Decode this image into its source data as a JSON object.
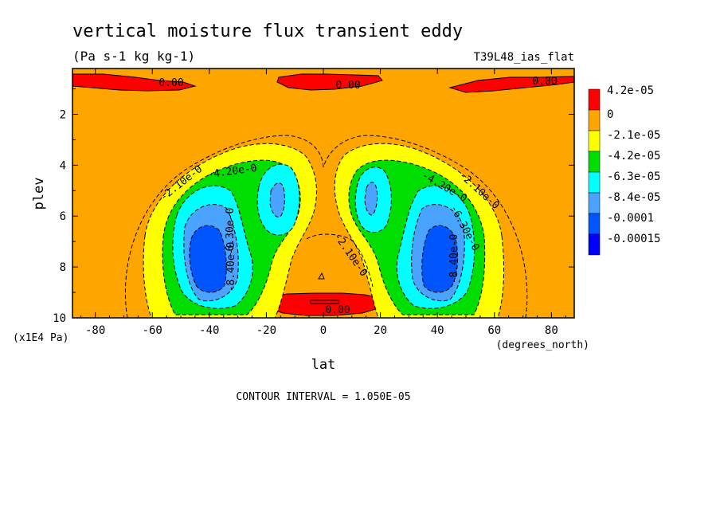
{
  "chart_data": {
    "type": "contour",
    "title": "vertical moisture flux transient eddy",
    "units": "(Pa s-1 kg kg-1)",
    "run_label": "T39L48_ias_flat",
    "xlabel": "lat",
    "x_units": "(degrees_north)",
    "ylabel": "plev",
    "y_units": "(x1E4 Pa)",
    "xlim": [
      -88,
      88
    ],
    "ylim": [
      10,
      0.2
    ],
    "x_ticks": [
      -80,
      -60,
      -40,
      -20,
      0,
      20,
      40,
      60,
      80
    ],
    "y_ticks": [
      2,
      4,
      6,
      8,
      10
    ],
    "contour_interval_text": "CONTOUR INTERVAL = 1.050E-05",
    "legend": [
      {
        "label": "4.2e-05",
        "color": "#ff0000"
      },
      {
        "label": "0",
        "color": "#ffa500"
      },
      {
        "label": "-2.1e-05",
        "color": "#ffff00"
      },
      {
        "label": "-4.2e-05",
        "color": "#00dd00"
      },
      {
        "label": "-6.3e-05",
        "color": "#00ffff"
      },
      {
        "label": "-8.4e-05",
        "color": "#4aa3ff"
      },
      {
        "label": "-0.0001",
        "color": "#0055ff"
      },
      {
        "label": "-0.00015",
        "color": "#0000ff"
      }
    ],
    "background_color": "#ffa500",
    "regions": [
      {
        "name": "positive-flux-top-south",
        "level": "0",
        "color": "#ff0000",
        "lat": [
          -88,
          -35
        ],
        "plev": [
          0.25,
          1.2
        ]
      },
      {
        "name": "positive-flux-top-center",
        "level": "0",
        "color": "#ff0000",
        "lat": [
          -15,
          15
        ],
        "plev": [
          0.2,
          1.1
        ]
      },
      {
        "name": "positive-flux-top-north",
        "level": "0",
        "color": "#ff0000",
        "lat": [
          45,
          88
        ],
        "plev": [
          0.25,
          1.2
        ]
      },
      {
        "name": "positive-flux-bottom",
        "level": "0",
        "color": "#ff0000",
        "lat": [
          -20,
          15
        ],
        "plev": [
          9.0,
          9.85
        ]
      },
      {
        "name": "negative-lobe-south",
        "min_level": "-0.00015",
        "lat": [
          -65,
          -15
        ],
        "plev": [
          3.3,
          10
        ]
      },
      {
        "name": "negative-lobe-north",
        "min_level": "-0.00015",
        "lat": [
          15,
          65
        ],
        "plev": [
          3.3,
          10
        ]
      }
    ],
    "contour_labels": [
      "0.00",
      "0.00",
      "0.00",
      "0.00",
      "-2.10e-0",
      "-4.20e-0",
      "-6.30e-0",
      "-8.40e-0",
      "-2.10e-0",
      "-2.10e-0",
      "-4.20e-0",
      "-6.30e-0",
      "-8.40e-0"
    ]
  }
}
